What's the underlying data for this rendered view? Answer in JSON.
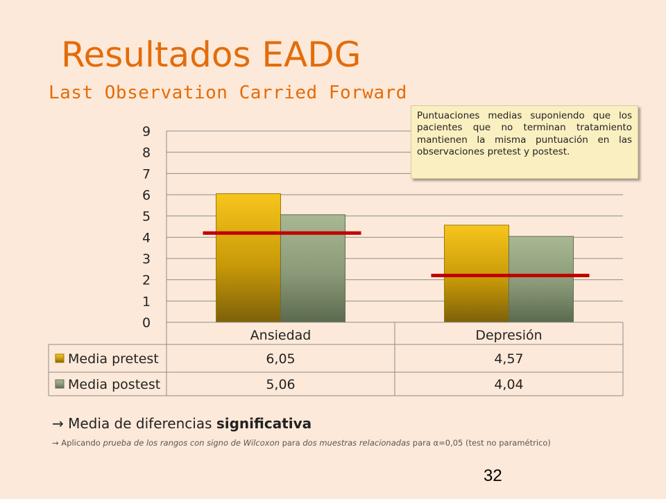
{
  "slide": {
    "title": "Resultados EADG",
    "subtitle": "Last Observation Carried Forward",
    "callout": "Puntuaciones medias suponiendo que los pacientes que no terminan tratamiento mantienen la misma puntuación en las observaciones pretest y postest.",
    "note": {
      "arrow": "→",
      "prefix": "Media de diferencias",
      "emphasis": "significativa",
      "detail_arrow": "→",
      "detail_1": "Aplicando",
      "detail_2": "prueba de los rangos con signo de Wilcoxon",
      "detail_3": "para",
      "detail_4": "dos muestras relacionadas",
      "detail_5": "para α=0,05 (test no paramétrico)"
    },
    "page_number": "32"
  },
  "chart_data": {
    "type": "bar",
    "categories": [
      "Ansiedad",
      "Depresión"
    ],
    "series": [
      {
        "name": "Media pretest",
        "values": [
          6.05,
          4.57
        ],
        "color": "#e2b000",
        "labels": [
          "6,05",
          "4,57"
        ]
      },
      {
        "name": "Media postest",
        "values": [
          5.06,
          4.04
        ],
        "color": "#8fa07c",
        "labels": [
          "5,06",
          "4,04"
        ]
      }
    ],
    "reference_lines": [
      {
        "category": "Ansiedad",
        "value": 4.2,
        "color": "#c00000"
      },
      {
        "category": "Depresión",
        "value": 2.2,
        "color": "#c00000"
      }
    ],
    "ylim": [
      0,
      9
    ],
    "yticks": [
      "0",
      "1",
      "2",
      "3",
      "4",
      "5",
      "6",
      "7",
      "8",
      "9"
    ],
    "grid": true,
    "legend": "data-table"
  }
}
